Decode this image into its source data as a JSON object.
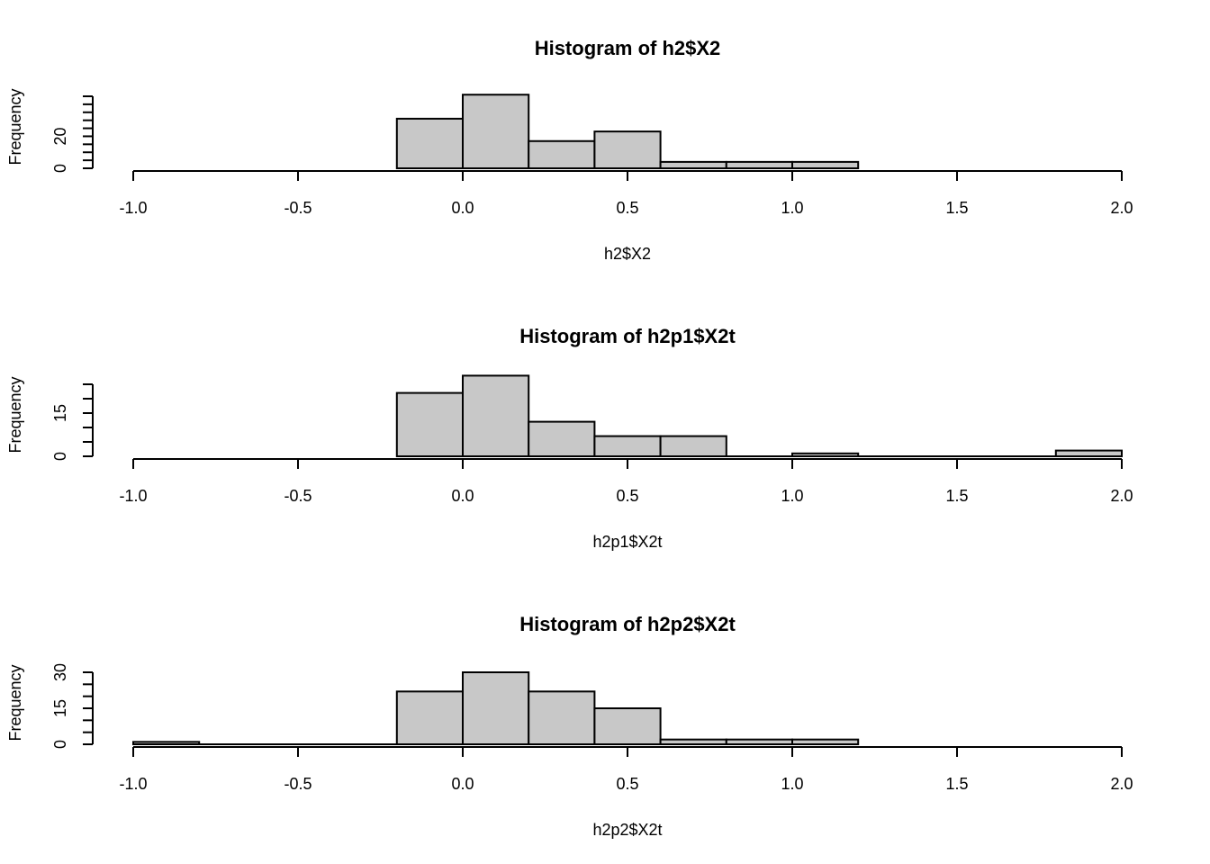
{
  "chart_data": [
    {
      "type": "bar",
      "title": "Histogram of h2$X2",
      "xlabel": "h2$X2",
      "ylabel": "Frequency",
      "xlim": [
        -1.0,
        2.0
      ],
      "ylim": [
        0,
        45
      ],
      "x_ticks": [
        "-1.0",
        "-0.5",
        "0.0",
        "0.5",
        "1.0",
        "1.5",
        "2.0"
      ],
      "x_tick_values": [
        -1.0,
        -0.5,
        0.0,
        0.5,
        1.0,
        1.5,
        2.0
      ],
      "y_ticks": [
        0,
        5,
        10,
        15,
        20,
        25,
        30,
        35,
        40,
        45
      ],
      "y_tick_labels": [
        "0",
        "",
        "",
        "",
        "20",
        "",
        "",
        "",
        "",
        ""
      ],
      "bin_edges": [
        -0.2,
        0.0,
        0.2,
        0.4,
        0.6,
        0.8,
        1.0,
        1.2
      ],
      "values": [
        31,
        46,
        17,
        23,
        4,
        4,
        4
      ]
    },
    {
      "type": "bar",
      "title": "Histogram of h2p1$X2t",
      "xlabel": "h2p1$X2t",
      "ylabel": "Frequency",
      "xlim": [
        -1.0,
        2.0
      ],
      "ylim": [
        0,
        25
      ],
      "x_ticks": [
        "-1.0",
        "-0.5",
        "0.0",
        "0.5",
        "1.0",
        "1.5",
        "2.0"
      ],
      "x_tick_values": [
        -1.0,
        -0.5,
        0.0,
        0.5,
        1.0,
        1.5,
        2.0
      ],
      "y_ticks": [
        0,
        5,
        10,
        15,
        20,
        25
      ],
      "y_tick_labels": [
        "0",
        "",
        "",
        "15",
        "",
        ""
      ],
      "bin_edges": [
        -0.2,
        0.0,
        0.2,
        0.4,
        0.6,
        0.8,
        1.0,
        1.2,
        1.4,
        1.6,
        1.8,
        2.0
      ],
      "values": [
        22,
        28,
        12,
        7,
        7,
        0,
        1,
        0,
        0,
        0,
        2
      ]
    },
    {
      "type": "bar",
      "title": "Histogram of h2p2$X2t",
      "xlabel": "h2p2$X2t",
      "ylabel": "Frequency",
      "xlim": [
        -1.0,
        2.0
      ],
      "ylim": [
        0,
        30
      ],
      "x_ticks": [
        "-1.0",
        "-0.5",
        "0.0",
        "0.5",
        "1.0",
        "1.5",
        "2.0"
      ],
      "x_tick_values": [
        -1.0,
        -0.5,
        0.0,
        0.5,
        1.0,
        1.5,
        2.0
      ],
      "y_ticks": [
        0,
        5,
        10,
        15,
        20,
        25,
        30
      ],
      "y_tick_labels": [
        "0",
        "",
        "",
        "15",
        "",
        "",
        "30"
      ],
      "bin_edges": [
        -1.0,
        -0.8,
        -0.6,
        -0.4,
        -0.2,
        0.0,
        0.2,
        0.4,
        0.6,
        0.8,
        1.0,
        1.2
      ],
      "values": [
        1,
        0,
        0,
        0,
        22,
        30,
        22,
        15,
        2,
        2,
        2
      ]
    }
  ]
}
